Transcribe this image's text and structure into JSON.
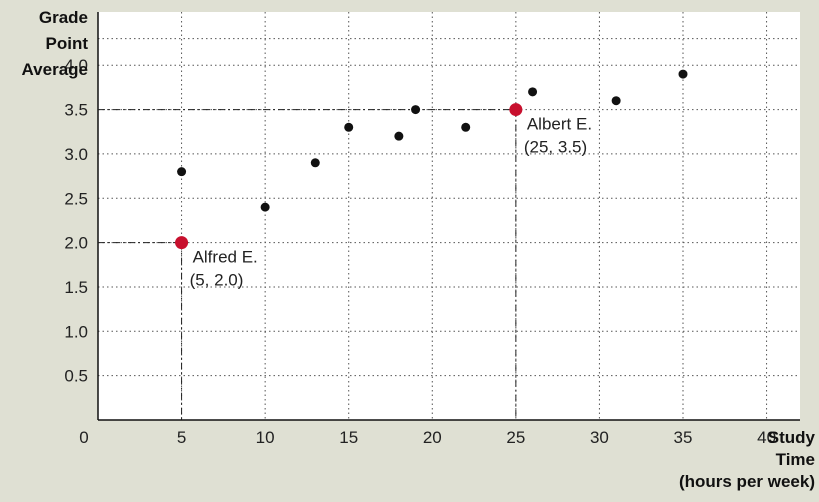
{
  "chart_data": {
    "type": "scatter",
    "ylabel_lines": [
      "Grade",
      "Point",
      "Average"
    ],
    "xlabel_lines": [
      "Study",
      "Time",
      "(hours per week)"
    ],
    "xlim": [
      0,
      42
    ],
    "ylim": [
      0,
      4.6
    ],
    "x_ticks": [
      0,
      5,
      10,
      15,
      20,
      25,
      30,
      35,
      40
    ],
    "y_ticks": [
      0.5,
      1.0,
      1.5,
      2.0,
      2.5,
      3.0,
      3.5,
      4.0
    ],
    "y_tick_labels": [
      "0.5",
      "1.0",
      "1.5",
      "2.0",
      "2.5",
      "3.0",
      "3.5",
      "4.0"
    ],
    "grid": true,
    "points": [
      {
        "x": 5,
        "y": 2.8
      },
      {
        "x": 10,
        "y": 2.4
      },
      {
        "x": 13,
        "y": 2.9
      },
      {
        "x": 15,
        "y": 3.3
      },
      {
        "x": 18,
        "y": 3.2
      },
      {
        "x": 19,
        "y": 3.5
      },
      {
        "x": 22,
        "y": 3.3
      },
      {
        "x": 26,
        "y": 3.7
      },
      {
        "x": 31,
        "y": 3.6
      },
      {
        "x": 35,
        "y": 3.9
      }
    ],
    "highlighted": [
      {
        "x": 5,
        "y": 2.0,
        "name": "Alfred E.",
        "coords": "(5, 2.0)"
      },
      {
        "x": 25,
        "y": 3.5,
        "name": "Albert E.",
        "coords": "(25, 3.5)"
      }
    ],
    "colors": {
      "background": "#dfe0d3",
      "plot_area": "#ffffff",
      "point": "#111111",
      "highlight": "#c8102e",
      "grid": "#555555"
    }
  }
}
